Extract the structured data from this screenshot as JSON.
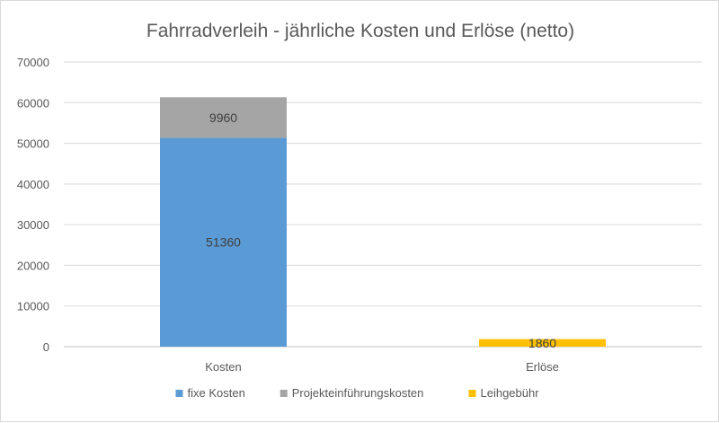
{
  "chart_data": {
    "type": "bar",
    "stacked": true,
    "title": "Fahrradverleih - jährliche Kosten und Erlöse (netto)",
    "categories": [
      "Kosten",
      "Erlöse"
    ],
    "series": [
      {
        "name": "fixe Kosten",
        "values": [
          51360,
          null
        ],
        "color": "#5b9bd5"
      },
      {
        "name": "Projekteinführungskosten",
        "values": [
          9960,
          null
        ],
        "color": "#a5a5a5"
      },
      {
        "name": "Leihgebühr",
        "values": [
          null,
          1860
        ],
        "color": "#ffc000"
      }
    ],
    "ylim": [
      0,
      70000
    ],
    "yticks": [
      "0",
      "10000",
      "20000",
      "30000",
      "40000",
      "50000",
      "60000",
      "70000"
    ],
    "grid": true,
    "legend": "bottom"
  }
}
